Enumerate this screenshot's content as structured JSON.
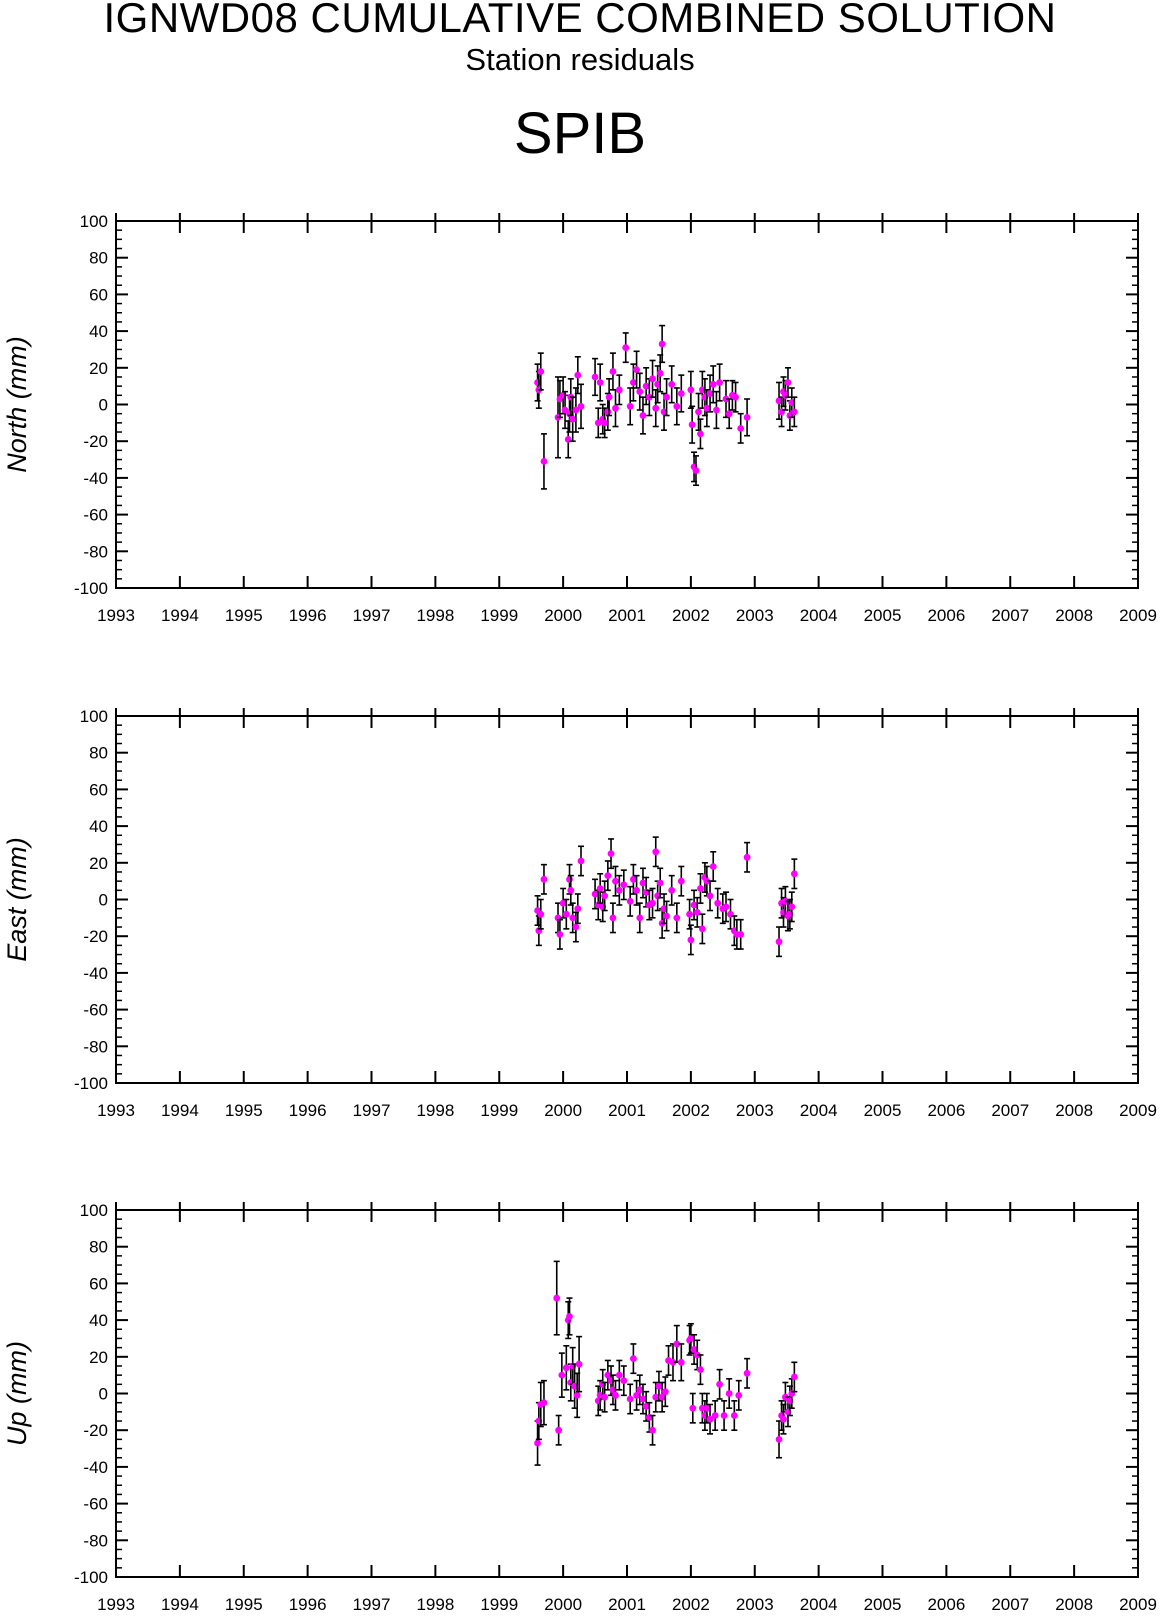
{
  "title": "IGNWD08 CUMULATIVE COMBINED SOLUTION",
  "subtitle": "Station residuals",
  "station": "SPIB",
  "colors": {
    "marker": "#ff00ff",
    "errorbar": "#000000",
    "axis": "#000000"
  },
  "chart_data": [
    {
      "type": "scatter",
      "component": "north",
      "ylabel": "North (mm)",
      "xlim": [
        1993,
        2009
      ],
      "ylim": [
        -100,
        100
      ],
      "x_ticks": [
        1993,
        1994,
        1995,
        1996,
        1997,
        1998,
        1999,
        2000,
        2001,
        2002,
        2003,
        2004,
        2005,
        2006,
        2007,
        2008,
        2009
      ],
      "y_ticks": [
        100,
        80,
        60,
        40,
        20,
        0,
        -20,
        -40,
        -60,
        -80,
        -100
      ],
      "grid": false,
      "series": [
        {
          "x": [
            1999.6,
            1999.62,
            1999.65,
            1999.7,
            1999.92,
            1999.95,
            2000.0,
            2000.03,
            2000.08,
            2000.1,
            2000.12,
            2000.15,
            2000.2,
            2000.23,
            2000.28,
            2000.5,
            2000.55,
            2000.58,
            2000.62,
            2000.65,
            2000.7,
            2000.72,
            2000.78,
            2000.82,
            2000.88,
            2000.98,
            2001.05,
            2001.1,
            2001.15,
            2001.2,
            2001.25,
            2001.3,
            2001.35,
            2001.4,
            2001.45,
            2001.48,
            2001.52,
            2001.55,
            2001.58,
            2001.62,
            2001.7,
            2001.78,
            2001.85,
            2002.0,
            2002.02,
            2002.05,
            2002.08,
            2002.12,
            2002.15,
            2002.18,
            2002.22,
            2002.25,
            2002.3,
            2002.35,
            2002.4,
            2002.45,
            2002.55,
            2002.6,
            2002.65,
            2002.7,
            2002.78,
            2002.88,
            2003.38,
            2003.42,
            2003.45,
            2003.48,
            2003.52,
            2003.55,
            2003.58,
            2003.62
          ],
          "y": [
            12,
            8,
            18,
            -31,
            -7,
            3,
            5,
            -3,
            -19,
            -5,
            4,
            -8,
            -3,
            16,
            -1,
            15,
            -10,
            12,
            -8,
            -10,
            -4,
            4,
            18,
            -2,
            8,
            31,
            -1,
            12,
            19,
            7,
            -6,
            10,
            4,
            14,
            -2,
            11,
            17,
            33,
            -4,
            4,
            11,
            -1,
            6,
            8,
            -11,
            -34,
            -36,
            -4,
            -16,
            8,
            4,
            -2,
            6,
            11,
            -3,
            12,
            3,
            -5,
            5,
            4,
            -13,
            -7,
            2,
            -4,
            7,
            5,
            12,
            -6,
            1,
            -4
          ],
          "err": [
            10,
            10,
            10,
            15,
            22,
            10,
            10,
            10,
            10,
            10,
            10,
            12,
            12,
            10,
            12,
            10,
            8,
            10,
            8,
            8,
            10,
            10,
            10,
            10,
            8,
            8,
            10,
            10,
            10,
            10,
            10,
            10,
            10,
            10,
            10,
            10,
            10,
            10,
            10,
            10,
            10,
            10,
            10,
            10,
            10,
            8,
            8,
            10,
            8,
            10,
            10,
            10,
            10,
            10,
            10,
            10,
            10,
            8,
            8,
            8,
            8,
            10,
            10,
            8,
            8,
            8,
            8,
            8,
            8,
            8
          ]
        }
      ]
    },
    {
      "type": "scatter",
      "component": "east",
      "ylabel": "East (mm)",
      "xlim": [
        1993,
        2009
      ],
      "ylim": [
        -100,
        100
      ],
      "x_ticks": [
        1993,
        1994,
        1995,
        1996,
        1997,
        1998,
        1999,
        2000,
        2001,
        2002,
        2003,
        2004,
        2005,
        2006,
        2007,
        2008,
        2009
      ],
      "y_ticks": [
        100,
        80,
        60,
        40,
        20,
        0,
        -20,
        -40,
        -60,
        -80,
        -100
      ],
      "grid": false,
      "series": [
        {
          "x": [
            1999.6,
            1999.62,
            1999.65,
            1999.7,
            1999.92,
            1999.95,
            2000.0,
            2000.05,
            2000.1,
            2000.12,
            2000.15,
            2000.2,
            2000.23,
            2000.28,
            2000.5,
            2000.55,
            2000.58,
            2000.62,
            2000.65,
            2000.7,
            2000.75,
            2000.78,
            2000.82,
            2000.88,
            2000.95,
            2001.05,
            2001.1,
            2001.15,
            2001.2,
            2001.25,
            2001.3,
            2001.35,
            2001.4,
            2001.45,
            2001.48,
            2001.52,
            2001.55,
            2001.58,
            2001.62,
            2001.7,
            2001.78,
            2001.85,
            2001.98,
            2002.0,
            2002.05,
            2002.1,
            2002.15,
            2002.18,
            2002.22,
            2002.25,
            2002.3,
            2002.35,
            2002.42,
            2002.5,
            2002.55,
            2002.62,
            2002.68,
            2002.72,
            2002.78,
            2002.88,
            2003.38,
            2003.42,
            2003.45,
            2003.48,
            2003.52,
            2003.55,
            2003.58,
            2003.62
          ],
          "y": [
            -6,
            -17,
            -8,
            11,
            -10,
            -19,
            -2,
            -8,
            11,
            5,
            -10,
            -15,
            -5,
            21,
            3,
            -3,
            6,
            -4,
            2,
            13,
            25,
            -10,
            10,
            5,
            8,
            -1,
            11,
            5,
            -10,
            9,
            4,
            -3,
            -2,
            26,
            2,
            9,
            -13,
            -5,
            -9,
            5,
            -10,
            10,
            -8,
            -22,
            -3,
            -7,
            6,
            -16,
            12,
            10,
            2,
            18,
            -2,
            -5,
            -4,
            -8,
            -17,
            -19,
            -19,
            23,
            -23,
            -2,
            -7,
            -1,
            -9,
            -8,
            -4,
            14
          ]
        }
      ]
    },
    {
      "type": "scatter",
      "component": "up",
      "ylabel": "Up (mm)",
      "xlim": [
        1993,
        2009
      ],
      "ylim": [
        -100,
        100
      ],
      "x_ticks": [
        1993,
        1994,
        1995,
        1996,
        1997,
        1998,
        1999,
        2000,
        2001,
        2002,
        2003,
        2004,
        2005,
        2006,
        2007,
        2008,
        2009
      ],
      "y_ticks": [
        100,
        80,
        60,
        40,
        20,
        0,
        -20,
        -40,
        -60,
        -80,
        -100
      ],
      "grid": false,
      "series": [
        {
          "x": [
            1999.6,
            1999.62,
            1999.65,
            1999.7,
            1999.9,
            1999.93,
            1999.98,
            2000.05,
            2000.08,
            2000.1,
            2000.12,
            2000.15,
            2000.18,
            2000.22,
            2000.25,
            2000.55,
            2000.58,
            2000.62,
            2000.65,
            2000.7,
            2000.75,
            2000.78,
            2000.82,
            2000.88,
            2000.95,
            2001.05,
            2001.1,
            2001.15,
            2001.2,
            2001.25,
            2001.3,
            2001.35,
            2001.4,
            2001.45,
            2001.5,
            2001.55,
            2001.6,
            2001.65,
            2001.72,
            2001.78,
            2001.85,
            2001.98,
            2002.0,
            2002.03,
            2002.05,
            2002.1,
            2002.15,
            2002.18,
            2002.22,
            2002.25,
            2002.3,
            2002.38,
            2002.45,
            2002.52,
            2002.6,
            2002.68,
            2002.75,
            2002.88,
            2003.38,
            2003.42,
            2003.45,
            2003.48,
            2003.52,
            2003.55,
            2003.58,
            2003.62
          ],
          "y": [
            -27,
            -15,
            -6,
            -5,
            52,
            -20,
            10,
            14,
            40,
            42,
            6,
            15,
            4,
            -1,
            16,
            -4,
            -1,
            5,
            -2,
            10,
            7,
            2,
            -1,
            10,
            7,
            -3,
            19,
            -1,
            2,
            -3,
            -7,
            -13,
            -20,
            -2,
            4,
            -2,
            1,
            18,
            17,
            27,
            17,
            29,
            30,
            -8,
            24,
            21,
            13,
            -8,
            -12,
            -8,
            -14,
            -12,
            5,
            -12,
            0,
            -12,
            -1,
            11,
            -25,
            -12,
            -14,
            -2,
            -10,
            -4,
            0,
            9
          ],
          "err": [
            12,
            10,
            12,
            12,
            20,
            8,
            12,
            12,
            10,
            10,
            10,
            10,
            12,
            12,
            15,
            8,
            8,
            8,
            8,
            8,
            8,
            8,
            8,
            8,
            8,
            8,
            8,
            8,
            8,
            8,
            8,
            8,
            8,
            8,
            8,
            8,
            8,
            8,
            10,
            10,
            10,
            8,
            8,
            8,
            8,
            8,
            8,
            8,
            8,
            8,
            8,
            8,
            8,
            8,
            8,
            8,
            8,
            8,
            10,
            8,
            8,
            8,
            8,
            8,
            8,
            8
          ]
        }
      ]
    }
  ]
}
